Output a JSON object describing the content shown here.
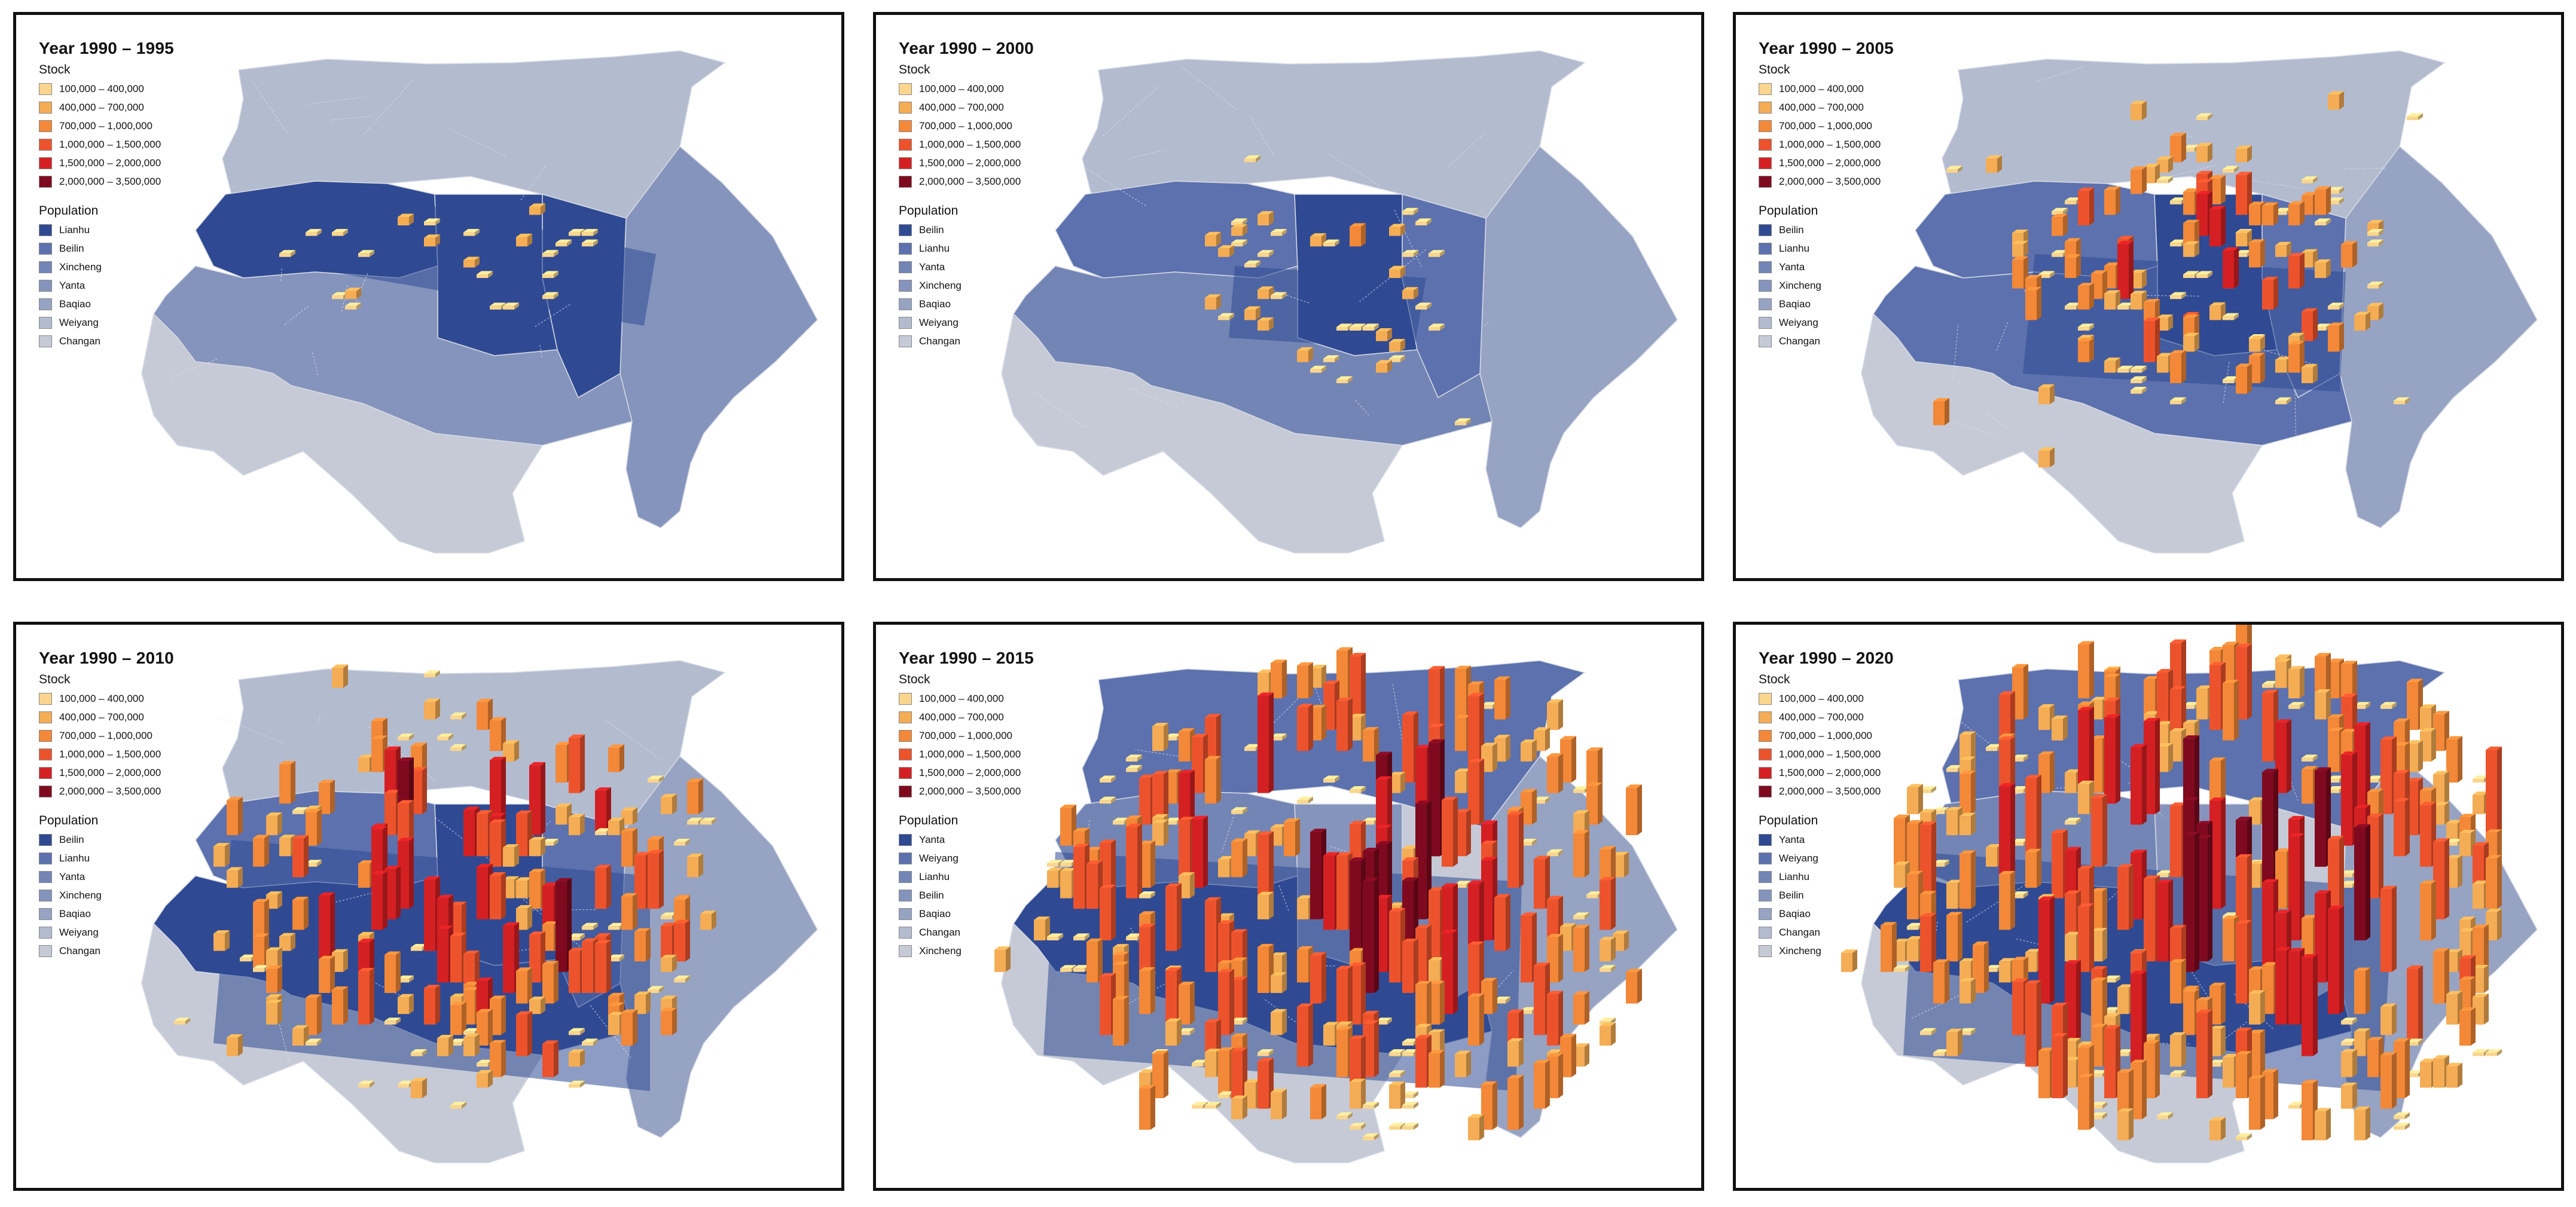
{
  "stock_classes": [
    {
      "label": "100,000 – 400,000",
      "color": "#f9d58e"
    },
    {
      "label": "400,000 – 700,000",
      "color": "#f4ac55"
    },
    {
      "label": "700,000 – 1,000,000",
      "color": "#f28838"
    },
    {
      "label": "1,000,000 – 1,500,000",
      "color": "#ec532d"
    },
    {
      "label": "1,500,000 – 2,000,000",
      "color": "#d42023"
    },
    {
      "label": "2,000,000 – 3,500,000",
      "color": "#7f0a1f"
    }
  ],
  "population_colors": [
    "#2f4a93",
    "#5c71ae",
    "#7385b5",
    "#8594bc",
    "#96a3c3",
    "#b3bbcf",
    "#c5cad6"
  ],
  "labels": {
    "stock": "Stock",
    "population": "Population"
  },
  "panels": [
    {
      "title": "Year 1990 – 1995",
      "districts": [
        "Lianhu",
        "Beilin",
        "Xincheng",
        "Yanta",
        "Baqiao",
        "Weiyang",
        "Changan"
      ],
      "district_shade": {
        "Lianhu": 0,
        "Beilin": 0,
        "Xincheng": 0,
        "Yanta": 3,
        "Baqiao": 3,
        "Weiyang": 5,
        "Changan": 6
      },
      "bar_count": 24
    },
    {
      "title": "Year 1990 – 2000",
      "districts": [
        "Beilin",
        "Lianhu",
        "Yanta",
        "Xincheng",
        "Baqiao",
        "Weiyang",
        "Changan"
      ],
      "district_shade": {
        "Lianhu": 1,
        "Beilin": 0,
        "Xincheng": 1,
        "Yanta": 2,
        "Baqiao": 4,
        "Weiyang": 5,
        "Changan": 6
      },
      "bar_count": 42
    },
    {
      "title": "Year 1990 – 2005",
      "districts": [
        "Beilin",
        "Lianhu",
        "Yanta",
        "Xincheng",
        "Baqiao",
        "Weiyang",
        "Changan"
      ],
      "district_shade": {
        "Lianhu": 1,
        "Beilin": 0,
        "Xincheng": 1,
        "Yanta": 1,
        "Baqiao": 4,
        "Weiyang": 5,
        "Changan": 6
      },
      "bar_count": 130
    },
    {
      "title": "Year 1990 – 2010",
      "districts": [
        "Beilin",
        "Lianhu",
        "Yanta",
        "Xincheng",
        "Baqiao",
        "Weiyang",
        "Changan"
      ],
      "district_shade": {
        "Lianhu": 1,
        "Beilin": 0,
        "Xincheng": 1,
        "Yanta": 0,
        "Baqiao": 4,
        "Weiyang": 5,
        "Changan": 6
      },
      "bar_count": 210
    },
    {
      "title": "Year 1990 – 2015",
      "districts": [
        "Yanta",
        "Weiyang",
        "Lianhu",
        "Beilin",
        "Baqiao",
        "Changan",
        "Xincheng"
      ],
      "district_shade": {
        "Lianhu": 2,
        "Beilin": 3,
        "Xincheng": 6,
        "Yanta": 0,
        "Baqiao": 4,
        "Weiyang": 1,
        "Changan": 6
      },
      "bar_count": 330
    },
    {
      "title": "Year 1990 – 2020",
      "districts": [
        "Yanta",
        "Weiyang",
        "Lianhu",
        "Beilin",
        "Baqiao",
        "Changan",
        "Xincheng"
      ],
      "district_shade": {
        "Lianhu": 2,
        "Beilin": 3,
        "Xincheng": 6,
        "Yanta": 0,
        "Baqiao": 4,
        "Weiyang": 1,
        "Changan": 6
      },
      "bar_count": 420
    }
  ]
}
